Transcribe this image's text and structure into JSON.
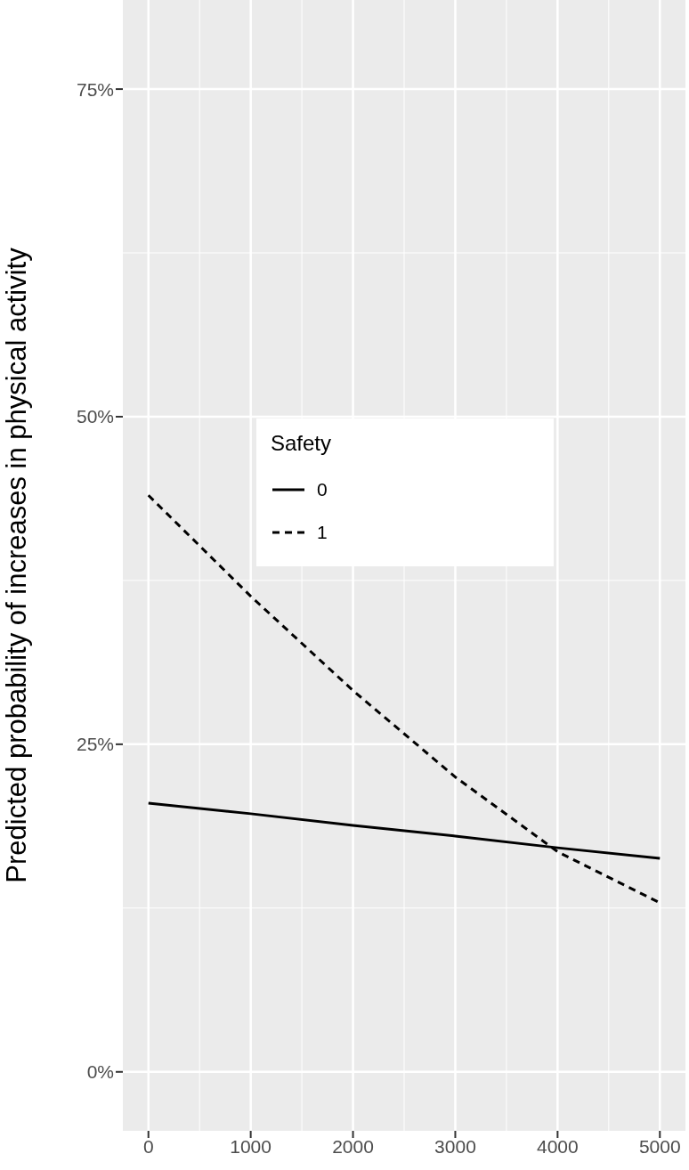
{
  "chart_data": {
    "type": "line",
    "ylabel": "Predicted probability of increases in physical activity",
    "legend_title": "Safety",
    "legend": "center",
    "grid": true,
    "marker": "none",
    "x": [
      0,
      1000,
      2000,
      3000,
      4000,
      5000
    ],
    "xlim": [
      -250,
      5250
    ],
    "xticks": [
      0,
      1000,
      2000,
      3000,
      4000,
      5000
    ],
    "ylim": [
      -4.5,
      81.8
    ],
    "yticks": [
      {
        "value": 0,
        "label": "0%"
      },
      {
        "value": 25,
        "label": "25%"
      },
      {
        "value": 50,
        "label": "50%"
      },
      {
        "value": 75,
        "label": "75%"
      }
    ],
    "series": [
      {
        "name": "0",
        "color": "#000000",
        "line_style": "solid",
        "values": [
          20.5,
          19.7,
          18.8,
          18.0,
          17.1,
          16.3
        ]
      },
      {
        "name": "1",
        "color": "#000000",
        "line_style": "dashed",
        "values": [
          44.0,
          36.3,
          29.1,
          22.5,
          16.8,
          12.9
        ]
      }
    ]
  }
}
